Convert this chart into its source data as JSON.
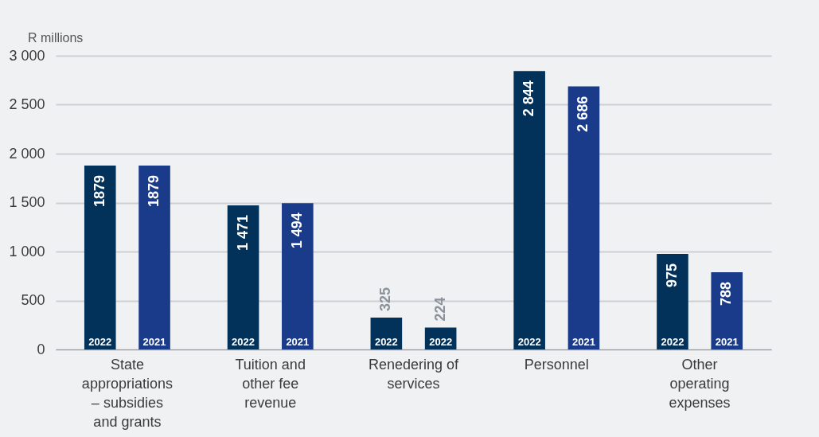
{
  "chart_data": {
    "type": "bar",
    "ylabel": "R millions",
    "categories": [
      "State appropriations – subsidies and grants",
      "Tuition and other fee revenue",
      "Renedering of services",
      "Personnel",
      "Other operating expenses"
    ],
    "series": [
      {
        "color": "#02315a",
        "values": [
          1879,
          1471,
          325,
          2844,
          975
        ],
        "value_labels": [
          "1879",
          "1 471",
          "325",
          "2 844",
          "975"
        ]
      },
      {
        "colors": [
          "#1a3a8a",
          "#1a3a8a",
          "#02315a",
          "#1a3a8a",
          "#1a3a8a"
        ],
        "values": [
          1879,
          1494,
          224,
          2686,
          788
        ],
        "value_labels": [
          "1879",
          "1 494",
          "224",
          "2 686",
          "788"
        ]
      }
    ],
    "ylim": [
      0,
      3000
    ],
    "yticks": [
      {
        "value": 0,
        "label": "0"
      },
      {
        "value": 500,
        "label": "500"
      },
      {
        "value": 1000,
        "label": "1 000"
      },
      {
        "value": 1500,
        "label": "1 500"
      },
      {
        "value": 2000,
        "label": "2 000"
      },
      {
        "value": 2500,
        "label": "2 500"
      },
      {
        "value": 3000,
        "label": "3 000"
      }
    ],
    "grid": "y",
    "annotations": [
      "2022",
      "2021",
      "2022",
      "2021",
      "2022",
      "2022",
      "2022",
      "2021",
      "2022",
      "2021"
    ]
  }
}
